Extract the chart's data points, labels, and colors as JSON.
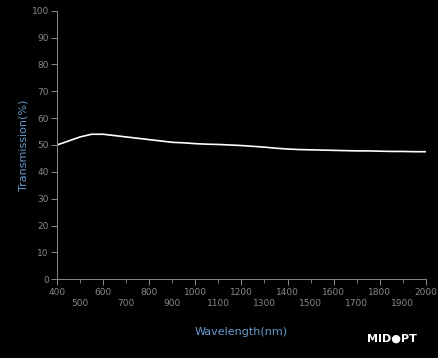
{
  "background_color": "#000000",
  "plot_bg_color": "#000000",
  "line_color": "#ffffff",
  "axis_color": "#888888",
  "tick_label_color": "#6699cc",
  "xlabel": "Wavelength(nm)",
  "ylabel": "Transmission(%)",
  "xlabel_color": "#6699cc",
  "ylabel_color": "#6699cc",
  "xlim": [
    400,
    2000
  ],
  "ylim": [
    0,
    100
  ],
  "xticks_major": [
    400,
    600,
    800,
    1000,
    1200,
    1400,
    1600,
    1800,
    2000
  ],
  "xticks_minor_labeled": [
    500,
    700,
    900,
    1100,
    1300,
    1500,
    1700,
    1900
  ],
  "yticks": [
    0,
    10,
    20,
    30,
    40,
    50,
    60,
    70,
    80,
    90,
    100
  ],
  "wavelengths": [
    400,
    450,
    500,
    550,
    600,
    650,
    700,
    750,
    800,
    850,
    900,
    950,
    1000,
    1050,
    1100,
    1150,
    1200,
    1250,
    1300,
    1350,
    1400,
    1450,
    1500,
    1550,
    1600,
    1650,
    1700,
    1750,
    1800,
    1850,
    1900,
    1950,
    2000
  ],
  "transmission": [
    50.0,
    51.5,
    53.0,
    54.0,
    54.0,
    53.5,
    53.0,
    52.5,
    52.0,
    51.5,
    51.0,
    50.8,
    50.5,
    50.3,
    50.2,
    50.0,
    49.8,
    49.5,
    49.2,
    48.8,
    48.5,
    48.3,
    48.2,
    48.1,
    48.0,
    47.9,
    47.8,
    47.8,
    47.7,
    47.6,
    47.6,
    47.5,
    47.5
  ],
  "line_width": 1.2,
  "figsize": [
    4.39,
    3.58
  ],
  "dpi": 100,
  "midopt_text": "MID●PT"
}
